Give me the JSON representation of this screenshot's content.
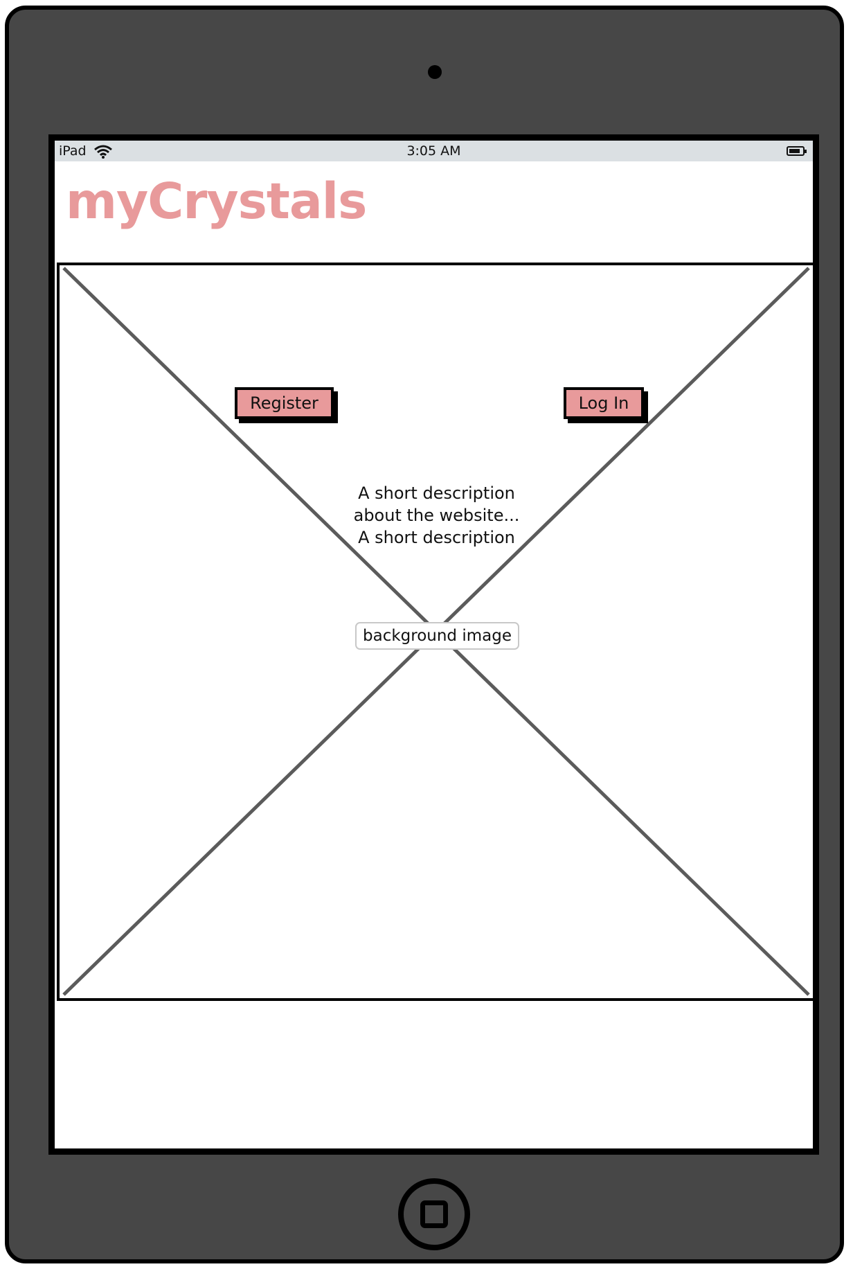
{
  "status_bar": {
    "device": "iPad",
    "time": "3:05 AM",
    "icons": [
      "wifi-icon",
      "battery-icon"
    ]
  },
  "header": {
    "brand": "myCrystals"
  },
  "hero": {
    "register_label": "Register",
    "login_label": "Log In",
    "description_lines": [
      "A short description",
      "about the website...",
      "A short description"
    ],
    "background_label": "background image"
  },
  "colors": {
    "device_body": "#474747",
    "accent": "#e89a9b",
    "status_bar": "#dbe0e3",
    "placeholder_lines": "#5b5b5b"
  }
}
